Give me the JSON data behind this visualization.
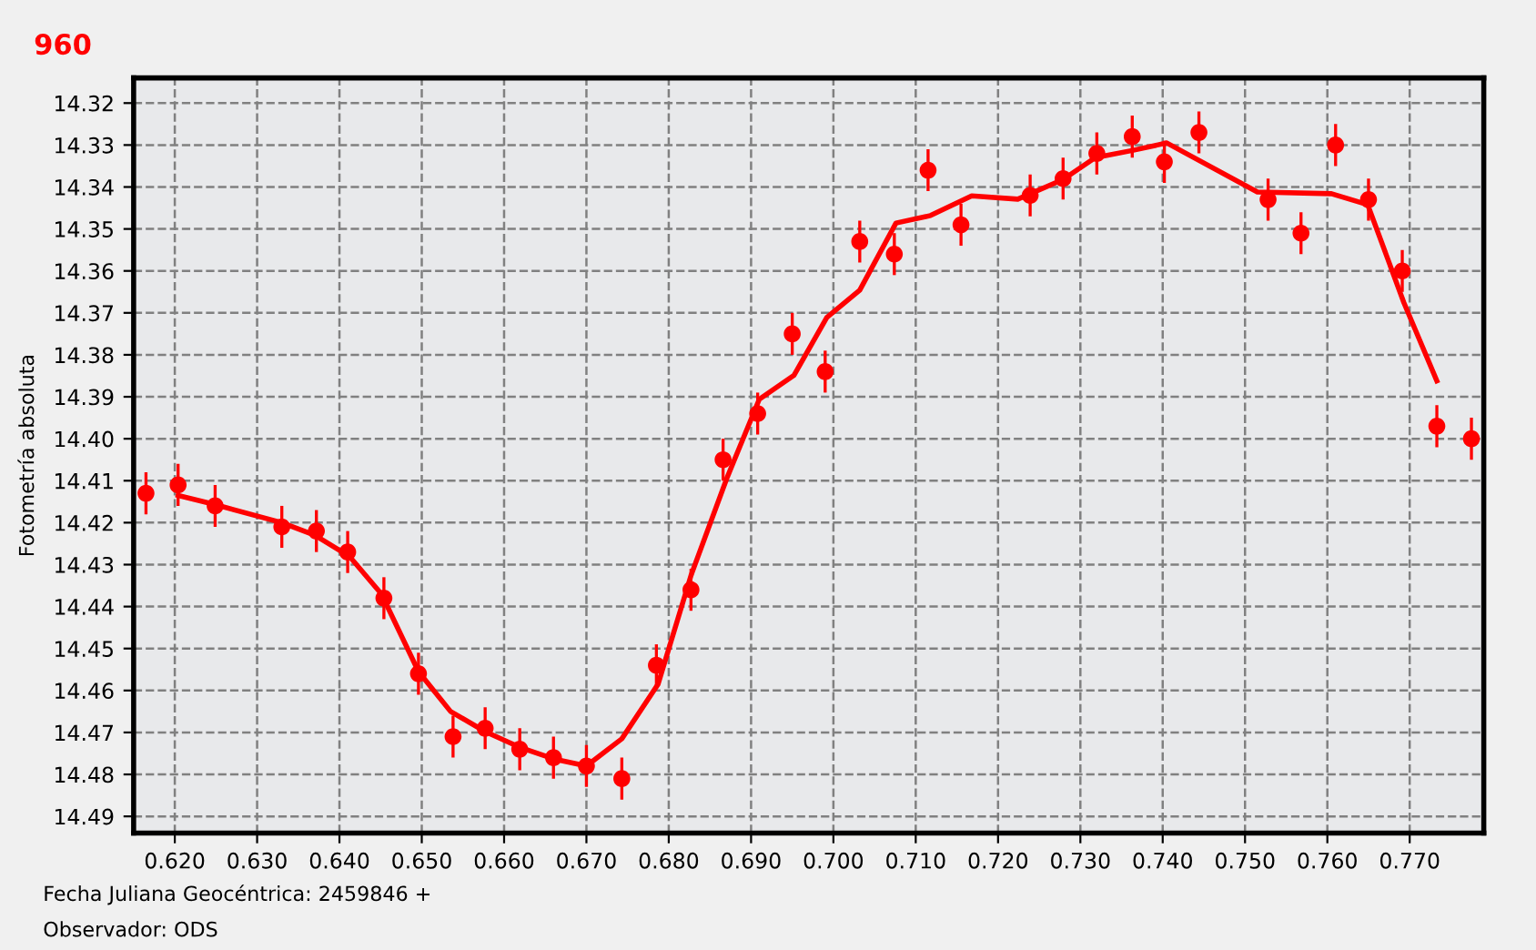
{
  "chart_data": {
    "type": "scatter",
    "title": "960",
    "ylabel": "Fotometría absoluta",
    "annotations": [
      "Fecha Juliana Geocéntrica: 2459846 +",
      "Observador: ODS"
    ],
    "xlim": [
      0.615,
      0.779
    ],
    "ylim": [
      14.494,
      14.314
    ],
    "xticks": [
      {
        "value": 0.62,
        "label": "0.620"
      },
      {
        "value": 0.63,
        "label": "0.630"
      },
      {
        "value": 0.64,
        "label": "0.640"
      },
      {
        "value": 0.65,
        "label": "0.650"
      },
      {
        "value": 0.66,
        "label": "0.660"
      },
      {
        "value": 0.67,
        "label": "0.670"
      },
      {
        "value": 0.68,
        "label": "0.680"
      },
      {
        "value": 0.69,
        "label": "0.690"
      },
      {
        "value": 0.7,
        "label": "0.700"
      },
      {
        "value": 0.71,
        "label": "0.710"
      },
      {
        "value": 0.72,
        "label": "0.720"
      },
      {
        "value": 0.73,
        "label": "0.730"
      },
      {
        "value": 0.74,
        "label": "0.740"
      },
      {
        "value": 0.75,
        "label": "0.750"
      },
      {
        "value": 0.76,
        "label": "0.760"
      },
      {
        "value": 0.77,
        "label": "0.770"
      }
    ],
    "yticks": [
      14.32,
      14.33,
      14.34,
      14.35,
      14.36,
      14.37,
      14.38,
      14.39,
      {
        "value": 14.4,
        "label": "14.40"
      },
      14.41,
      14.42,
      14.43,
      14.44,
      14.45,
      14.46,
      14.47,
      14.48,
      14.49
    ],
    "grid": true,
    "marker": "circle",
    "series": [
      {
        "color": "#ff0000",
        "x": [
          0.6165,
          0.6204,
          0.6249,
          0.633,
          0.6372,
          0.641,
          0.6454,
          0.6496,
          0.6538,
          0.6577,
          0.6619,
          0.666,
          0.67,
          0.6743,
          0.6785,
          0.6827,
          0.6866,
          0.6908,
          0.695,
          0.699,
          0.7032,
          0.7074,
          0.7115,
          0.7155,
          0.7239,
          0.7279,
          0.732,
          0.7363,
          0.7402,
          0.7444,
          0.7528,
          0.7568,
          0.761,
          0.765,
          0.7691,
          0.7733,
          0.7775
        ],
        "values": [
          14.413,
          14.411,
          14.416,
          14.421,
          14.422,
          14.427,
          14.438,
          14.456,
          14.471,
          14.469,
          14.474,
          14.476,
          14.478,
          14.481,
          14.454,
          14.436,
          14.405,
          14.394,
          14.375,
          14.384,
          14.353,
          14.356,
          14.336,
          14.349,
          14.342,
          14.338,
          14.332,
          14.328,
          14.334,
          14.327,
          14.343,
          14.351,
          14.33,
          14.343,
          14.36,
          14.397,
          14.4
        ],
        "errors": [
          0.005,
          0.005,
          0.005,
          0.005,
          0.005,
          0.005,
          0.005,
          0.005,
          0.005,
          0.005,
          0.005,
          0.005,
          0.005,
          0.005,
          0.005,
          0.005,
          0.005,
          0.005,
          0.005,
          0.005,
          0.005,
          0.005,
          0.005,
          0.005,
          0.005,
          0.005,
          0.005,
          0.005,
          0.005,
          0.005,
          0.005,
          0.005,
          0.005,
          0.005,
          0.005,
          0.005,
          0.005
        ]
      },
      {
        "type": "line",
        "color": "#ff0000",
        "marker": "none",
        "line_style": "solid",
        "x": [
          0.6204,
          0.6249,
          0.633,
          0.637,
          0.6412,
          0.6451,
          0.6496,
          0.6535,
          0.6577,
          0.6621,
          0.666,
          0.67,
          0.6743,
          0.6787,
          0.6827,
          0.6871,
          0.691,
          0.6952,
          0.6992,
          0.7032,
          0.7076,
          0.7118,
          0.7168,
          0.7224,
          0.7279,
          0.7318,
          0.7363,
          0.7405,
          0.7515,
          0.7605,
          0.7649,
          0.7693,
          0.7733
        ],
        "values": [
          14.4135,
          14.4157,
          14.42,
          14.423,
          14.428,
          14.437,
          14.4555,
          14.465,
          14.4698,
          14.4737,
          14.4763,
          14.478,
          14.4715,
          14.4585,
          14.4326,
          14.4092,
          14.3906,
          14.3849,
          14.3711,
          14.3646,
          14.3486,
          14.3468,
          14.3421,
          14.3429,
          14.3382,
          14.333,
          14.3313,
          14.3295,
          14.3412,
          14.3416,
          14.3442,
          14.3676,
          14.3862
        ]
      }
    ]
  }
}
